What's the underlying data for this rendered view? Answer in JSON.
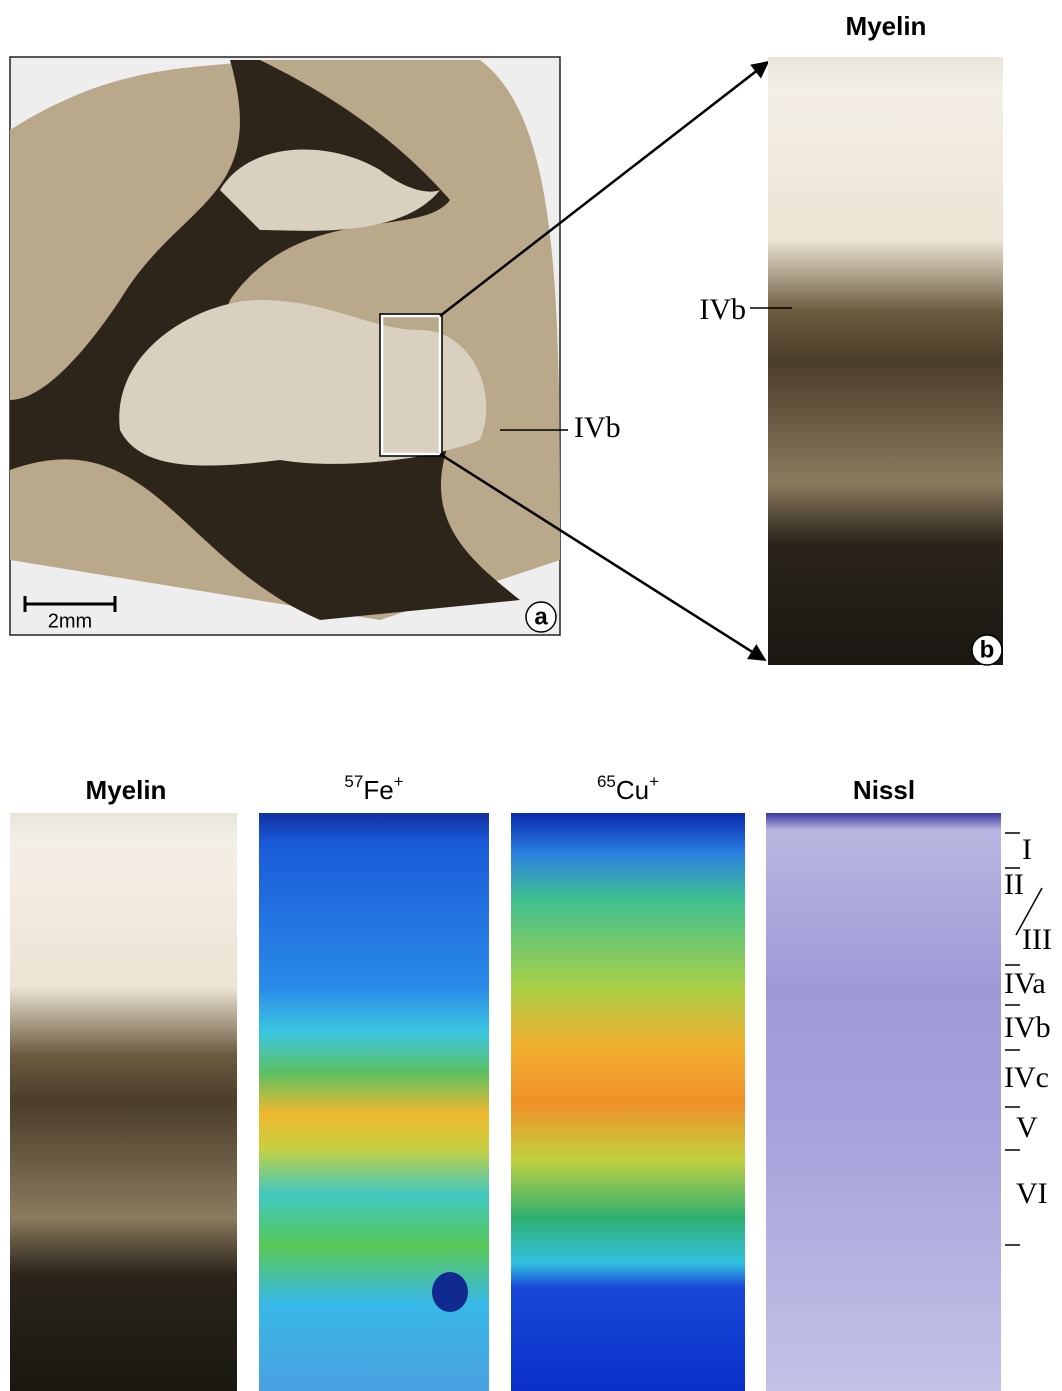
{
  "panel_a": {
    "label": "a",
    "scale_bar": "2mm",
    "layer_label": "IVb"
  },
  "panel_b": {
    "title": "Myelin",
    "label": "b",
    "layer_label": "IVb"
  },
  "bottom_row": {
    "titles": [
      {
        "text": "Myelin"
      },
      {
        "mass": "57",
        "element": "Fe",
        "charge": "+"
      },
      {
        "mass": "65",
        "element": "Cu",
        "charge": "+"
      },
      {
        "text": "Nissl"
      }
    ],
    "layers": [
      "I",
      "II",
      "III",
      "IVa",
      "IVb",
      "IVc",
      "V",
      "VI"
    ]
  }
}
